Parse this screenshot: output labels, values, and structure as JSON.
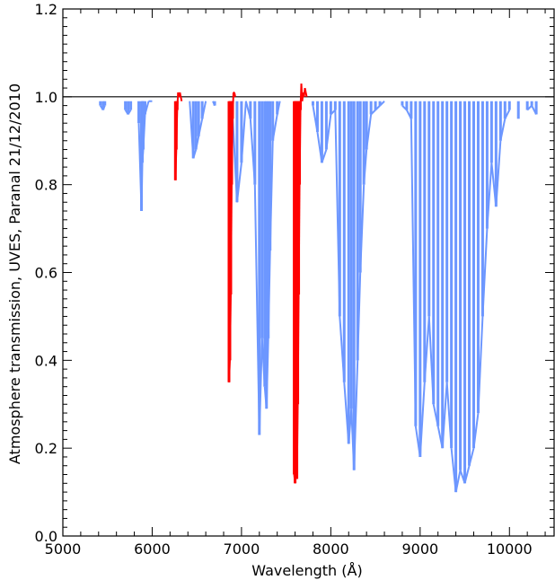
{
  "chart_data": {
    "type": "line",
    "xlabel": "Wavelength (Å)",
    "ylabel": "Atmosphere transmission, UVES, Paranal 21/12/2010",
    "xlim": [
      5000,
      10500
    ],
    "ylim": [
      0.0,
      1.2
    ],
    "x_ticks": [
      5000,
      6000,
      7000,
      8000,
      9000,
      10000
    ],
    "y_ticks": [
      0.0,
      0.2,
      0.4,
      0.6,
      0.8,
      1.0,
      1.2
    ],
    "x_tick_labels": [
      "5000",
      "6000",
      "7000",
      "8000",
      "9000",
      "10000"
    ],
    "y_tick_labels": [
      "0.0",
      "0.2",
      "0.4",
      "0.6",
      "0.8",
      "1.0",
      "1.2"
    ],
    "reference_line": 1.0,
    "colors": {
      "series_blue": "#6d97ff",
      "series_red": "#ff0000",
      "axis": "#000000"
    },
    "series": [
      {
        "color": "#6d97ff",
        "x": [
          5420,
          5450,
          5470,
          5700,
          5730,
          5760,
          5850,
          5880,
          5890,
          5900,
          5920,
          5960,
          6000,
          6420,
          6460,
          6490,
          6520,
          6560,
          6600,
          6680,
          6700,
          6900,
          6950,
          7000,
          7050,
          7100,
          7150,
          7200,
          7230,
          7260,
          7280,
          7300,
          7320,
          7350,
          7400,
          7430,
          7800,
          7850,
          7900,
          7950,
          8000,
          8050,
          8100,
          8150,
          8200,
          8230,
          8260,
          8300,
          8330,
          8370,
          8400,
          8450,
          8500,
          8550,
          8600,
          8800,
          8850,
          8900,
          8950,
          9000,
          9050,
          9100,
          9150,
          9200,
          9250,
          9300,
          9350,
          9400,
          9450,
          9500,
          9550,
          9600,
          9650,
          9700,
          9750,
          9800,
          9850,
          9900,
          9950,
          10000,
          10100,
          10200,
          10250,
          10300
        ],
        "y": [
          0.98,
          0.97,
          0.98,
          0.97,
          0.96,
          0.97,
          0.94,
          0.74,
          0.85,
          0.88,
          0.96,
          0.99,
          0.99,
          0.99,
          0.86,
          0.88,
          0.91,
          0.95,
          0.99,
          0.99,
          0.98,
          0.96,
          0.76,
          0.85,
          0.99,
          0.95,
          0.8,
          0.23,
          0.45,
          0.34,
          0.29,
          0.45,
          0.65,
          0.9,
          0.96,
          0.99,
          0.98,
          0.92,
          0.85,
          0.88,
          0.96,
          0.97,
          0.5,
          0.35,
          0.21,
          0.29,
          0.15,
          0.4,
          0.6,
          0.8,
          0.88,
          0.96,
          0.97,
          0.98,
          0.99,
          0.98,
          0.97,
          0.95,
          0.25,
          0.18,
          0.35,
          0.5,
          0.3,
          0.25,
          0.2,
          0.35,
          0.2,
          0.1,
          0.15,
          0.12,
          0.16,
          0.2,
          0.28,
          0.5,
          0.7,
          0.85,
          0.75,
          0.9,
          0.95,
          0.97,
          0.95,
          0.97,
          0.98,
          0.96
        ]
      },
      {
        "color": "#ff0000",
        "x": [
          6260,
          6270,
          6280,
          6290,
          6300,
          6310,
          6320,
          6330,
          6860,
          6870,
          6880,
          6890,
          6900,
          6910,
          6920,
          6930,
          7590,
          7600,
          7610,
          7620,
          7630,
          7640,
          7650,
          7660,
          7670,
          7680,
          7690,
          7700,
          7710,
          7720,
          7730
        ],
        "y": [
          0.81,
          0.88,
          0.97,
          1.01,
          1.0,
          1.01,
          1.0,
          0.99,
          0.35,
          0.4,
          0.55,
          0.8,
          0.95,
          1.01,
          1.01,
          1.0,
          0.14,
          0.12,
          0.15,
          0.13,
          0.3,
          0.55,
          0.8,
          0.97,
          1.03,
          0.99,
          1.01,
          1.0,
          1.02,
          1.01,
          1.0
        ]
      }
    ]
  }
}
